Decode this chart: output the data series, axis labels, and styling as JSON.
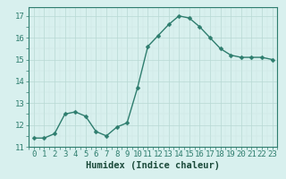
{
  "x": [
    0,
    1,
    2,
    3,
    4,
    5,
    6,
    7,
    8,
    9,
    10,
    11,
    12,
    13,
    14,
    15,
    16,
    17,
    18,
    19,
    20,
    21,
    22,
    23
  ],
  "y": [
    11.4,
    11.4,
    11.6,
    12.5,
    12.6,
    12.4,
    11.7,
    11.5,
    11.9,
    12.1,
    13.7,
    15.6,
    16.1,
    16.6,
    17.0,
    16.9,
    16.5,
    16.0,
    15.5,
    15.2,
    15.1,
    15.1,
    15.1,
    15.0
  ],
  "line_color": "#2e7d6e",
  "marker": "D",
  "marker_size": 2.5,
  "bg_color": "#d8f0ee",
  "grid_major_color": "#b8d8d4",
  "grid_minor_color": "#cce6e2",
  "xlabel": "Humidex (Indice chaleur)",
  "xlabel_fontsize": 7.5,
  "tick_fontsize": 6.5,
  "ylim": [
    11,
    17.4
  ],
  "xlim": [
    -0.5,
    23.5
  ],
  "yticks": [
    11,
    12,
    13,
    14,
    15,
    16,
    17
  ],
  "xticks": [
    0,
    1,
    2,
    3,
    4,
    5,
    6,
    7,
    8,
    9,
    10,
    11,
    12,
    13,
    14,
    15,
    16,
    17,
    18,
    19,
    20,
    21,
    22,
    23
  ],
  "spine_color": "#2e7d6e",
  "tick_color": "#2e7d6e",
  "label_color": "#1a4a3a"
}
